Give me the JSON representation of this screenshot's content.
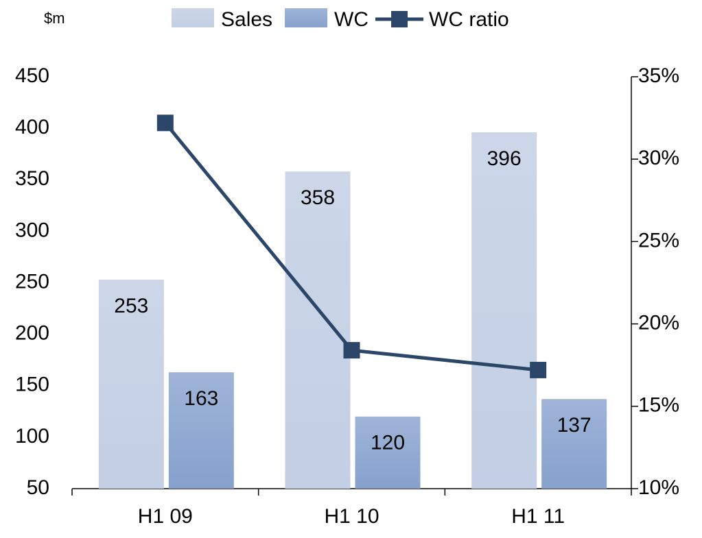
{
  "chart_data": {
    "type": "bar",
    "ylabel": "$m",
    "categories": [
      "H1 09",
      "H1 10",
      "H1 11"
    ],
    "series": [
      {
        "name": "Sales",
        "type": "bar",
        "color": "#c3cfe4",
        "values": [
          253,
          358,
          396
        ]
      },
      {
        "name": "WC",
        "type": "bar",
        "color": "#87a1cd",
        "values": [
          163,
          120,
          137
        ]
      },
      {
        "name": "WC ratio",
        "type": "line",
        "axis": "y2",
        "color": "#2b4669",
        "values": [
          32.2,
          18.4,
          17.2
        ]
      }
    ],
    "ylim": [
      50,
      450
    ],
    "yticks": [
      50,
      100,
      150,
      200,
      250,
      300,
      350,
      400,
      450
    ],
    "y2lim": [
      10,
      35
    ],
    "y2ticks": [
      {
        "value": 10,
        "label": "10%"
      },
      {
        "value": 15,
        "label": "15%"
      },
      {
        "value": 20,
        "label": "20%"
      },
      {
        "value": 25,
        "label": "25%"
      },
      {
        "value": 30,
        "label": "30%"
      },
      {
        "value": 35,
        "label": "35%"
      }
    ],
    "legend": "top"
  }
}
